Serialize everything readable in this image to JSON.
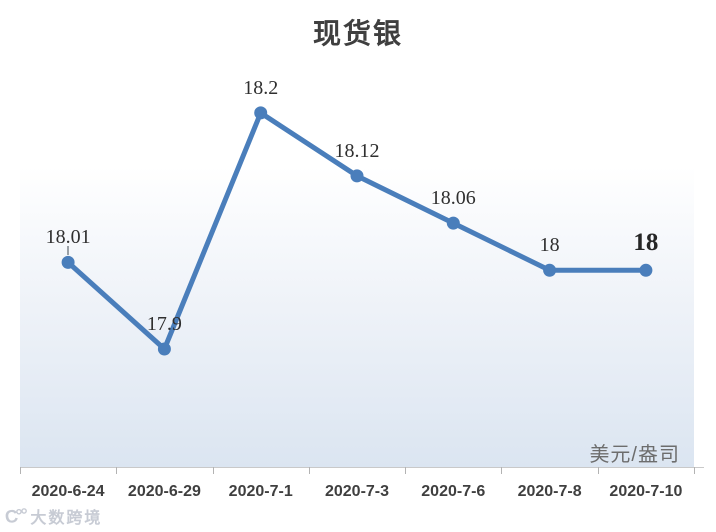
{
  "title": "现货银",
  "unit_label": "美元/盎司",
  "watermark": {
    "logo": "C°°",
    "text": "大数跨境"
  },
  "colors": {
    "line": "#4a7ebb",
    "marker": "#4a7ebb",
    "title_text": "#3f3f3f",
    "data_label_text": "#2f2f2f",
    "axis_line": "#c9c9c9",
    "tick": "#b3b3b3",
    "unit_text": "#6d6d6d",
    "plot_gradient_bottom": "#dbe5f1",
    "watermark_text": "#c7cbd4"
  },
  "chart_data": {
    "type": "line",
    "title": "现货银",
    "categories": [
      "2020-6-24",
      "2020-6-29",
      "2020-7-1",
      "2020-7-3",
      "2020-7-6",
      "2020-7-8",
      "2020-7-10"
    ],
    "values": [
      18.01,
      17.9,
      18.2,
      18.12,
      18.06,
      18,
      18
    ],
    "data_labels": [
      "18.01",
      "17.9",
      "18.2",
      "18.12",
      "18.06",
      "18",
      "18"
    ],
    "emphasized_point_index": 6,
    "xlabel": "",
    "ylabel": "美元/盎司",
    "ylim": [
      17.75,
      18.28
    ],
    "grid": false,
    "legend": false,
    "marker": "circle",
    "line_color": "#4a7ebb"
  }
}
